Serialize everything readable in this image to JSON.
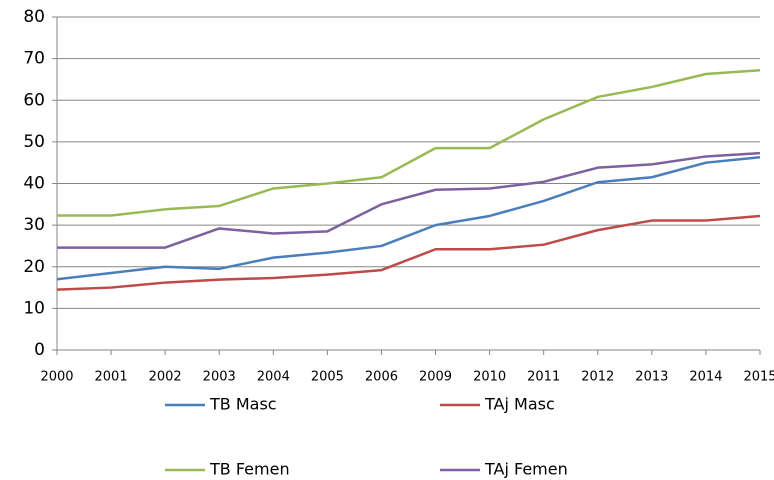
{
  "chart_data": {
    "type": "line",
    "categories": [
      "2000",
      "2001",
      "2002",
      "2003",
      "2004",
      "2005",
      "2006",
      "2009",
      "2010",
      "2011",
      "2012",
      "2013",
      "2014",
      "2015"
    ],
    "series": [
      {
        "name": "TB Masc",
        "color": "#4a7ebb",
        "values": [
          17,
          18.5,
          20,
          19.5,
          22.2,
          23.4,
          25,
          30,
          32.2,
          35.8,
          40.3,
          41.5,
          45,
          46.3
        ]
      },
      {
        "name": "TAj Masc",
        "color": "#be4b48",
        "values": [
          14.5,
          15,
          16.2,
          16.9,
          17.3,
          18.1,
          19.2,
          24.2,
          24.2,
          25.3,
          28.8,
          31.1,
          31.1,
          32.2
        ]
      },
      {
        "name": "TB Femen",
        "color": "#98b954",
        "values": [
          32.3,
          32.3,
          33.8,
          34.6,
          38.8,
          40,
          41.5,
          48.5,
          48.5,
          55.4,
          60.8,
          63.2,
          66.3,
          67.2
        ]
      },
      {
        "name": "TAj Femen",
        "color": "#7d60a0",
        "values": [
          24.6,
          24.6,
          24.6,
          29.2,
          28,
          28.5,
          35,
          38.5,
          38.8,
          40.4,
          43.8,
          44.6,
          46.5,
          47.3
        ]
      }
    ],
    "ylim": [
      0,
      80
    ],
    "yticks": [
      0,
      10,
      20,
      30,
      40,
      50,
      60,
      70,
      80
    ],
    "grid": true,
    "legend": "bottom"
  }
}
